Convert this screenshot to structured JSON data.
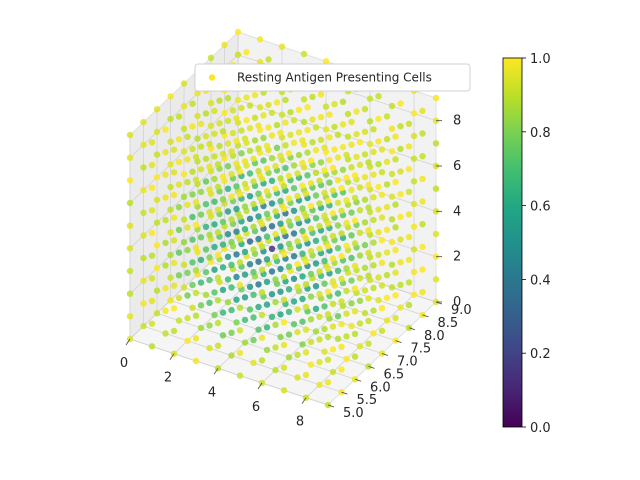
{
  "chart_data": {
    "type": "scatter",
    "projection": "3d",
    "title": "",
    "xlabel": "",
    "ylabel": "",
    "zlabel": "",
    "xlim": [
      0,
      9
    ],
    "ylim": [
      5,
      9
    ],
    "zlim": [
      0,
      9
    ],
    "x_ticks": [
      "0",
      "2",
      "4",
      "6",
      "8"
    ],
    "y_ticks": [
      "5.0",
      "5.5",
      "6.0",
      "6.5",
      "7.0",
      "7.5",
      "8.0",
      "8.5",
      "9.0"
    ],
    "z_ticks": [
      "0",
      "2",
      "4",
      "6",
      "8"
    ],
    "grid": true,
    "legend": {
      "position": "top-right",
      "entries": [
        "Resting Antigen Presenting Cells"
      ],
      "marker_color": "#fde725"
    },
    "colorbar": {
      "cmap": "viridis",
      "min": 0.0,
      "max": 1.0,
      "ticks": [
        "0.0",
        "0.2",
        "0.4",
        "0.6",
        "0.8",
        "1.0"
      ]
    },
    "series": [
      {
        "name": "Resting Antigen Presenting Cells",
        "description_of_grid": "points on a regular lattice x=0..9, y=5..9, z=0..9; color = value",
        "value_model": {
          "center": [
            4,
            7,
            3
          ],
          "low": 0.2,
          "high": 0.95
        }
      }
    ]
  }
}
